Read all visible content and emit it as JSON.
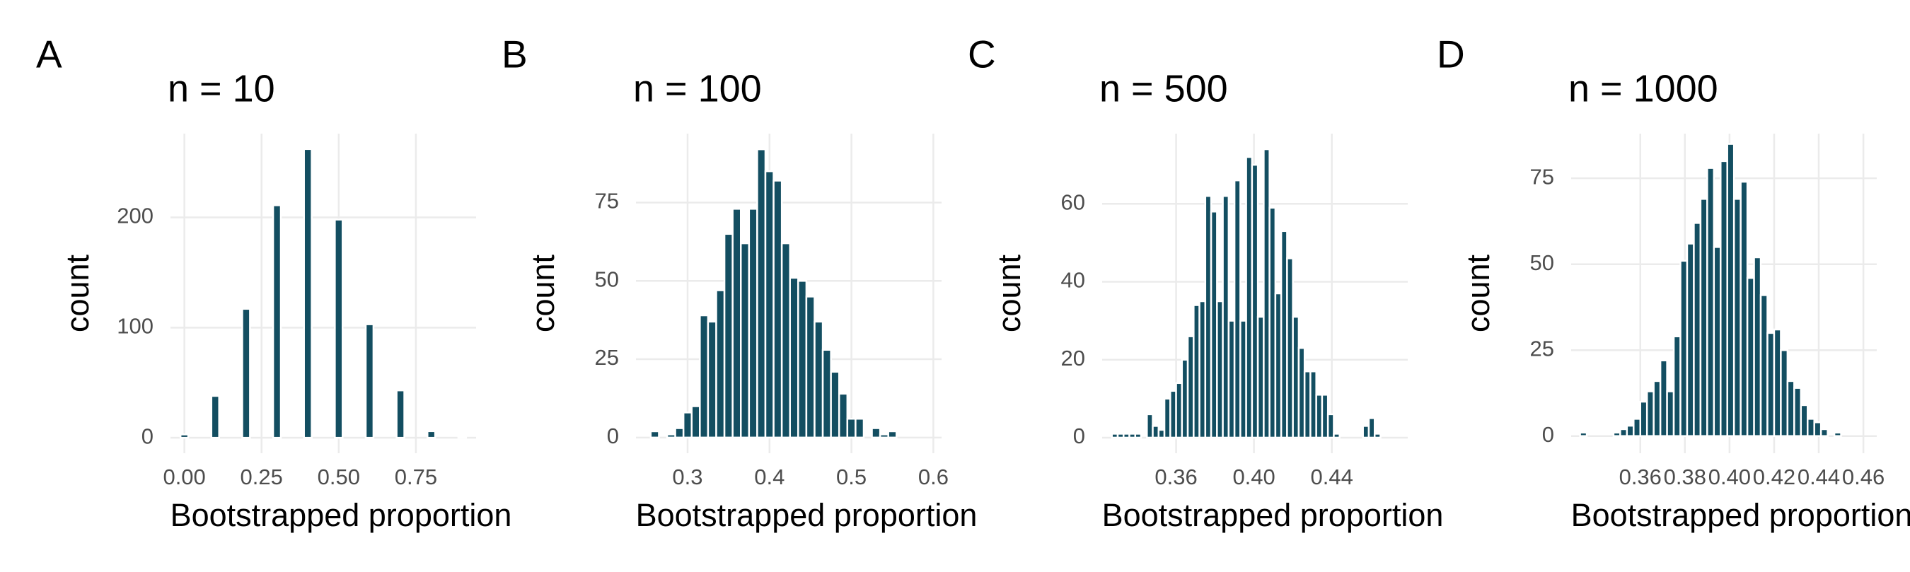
{
  "chart_data": [
    {
      "type": "histogram",
      "panel_label": "A",
      "title": "n = 10",
      "x_label": "Bootstrapped proportion",
      "y_label": "count",
      "color": "#134e61",
      "grid": true,
      "bins": [
        -0.0125,
        0.0125,
        0.0375,
        0.0625,
        0.0875,
        0.1125,
        0.1375,
        0.1625,
        0.1875,
        0.2125,
        0.2375,
        0.2625,
        0.2875,
        0.3125,
        0.3375,
        0.3625,
        0.3875,
        0.4125,
        0.4375,
        0.4625,
        0.4875,
        0.5125,
        0.5375,
        0.5625,
        0.5875,
        0.6125,
        0.6375,
        0.6625,
        0.6875,
        0.7125,
        0.7375,
        0.7625,
        0.7875,
        0.8125,
        0.8375,
        0.8625,
        0.8875,
        0.9125
      ],
      "counts": [
        3,
        0,
        0,
        0,
        38,
        0,
        0,
        0,
        117,
        0,
        0,
        0,
        211,
        0,
        0,
        0,
        262,
        0,
        0,
        0,
        198,
        0,
        0,
        0,
        103,
        0,
        0,
        0,
        43,
        0,
        0,
        0,
        6,
        0,
        0,
        0,
        1
      ],
      "xlim": [
        -0.045,
        0.945
      ],
      "ylim": [
        -14,
        276
      ],
      "xticks": [
        {
          "value": 0,
          "label": "0.00"
        },
        0.25,
        {
          "value": 0.5,
          "label": "0.50"
        },
        0.75
      ],
      "yticks": [
        0,
        100,
        200
      ]
    },
    {
      "type": "histogram",
      "panel_label": "B",
      "title": "n = 100",
      "x_label": "Bootstrapped proportion",
      "y_label": "count",
      "color": "#134e61",
      "grid": true,
      "bins": [
        0.255,
        0.265,
        0.275,
        0.285,
        0.295,
        0.305,
        0.315,
        0.325,
        0.335,
        0.345,
        0.355,
        0.365,
        0.375,
        0.385,
        0.395,
        0.405,
        0.415,
        0.425,
        0.435,
        0.445,
        0.455,
        0.465,
        0.475,
        0.485,
        0.495,
        0.505,
        0.515,
        0.525,
        0.535,
        0.545,
        0.555
      ],
      "counts": [
        2,
        0,
        1,
        3,
        8,
        10,
        39,
        37,
        47,
        65,
        73,
        62,
        73,
        92,
        85,
        82,
        62,
        51,
        50,
        45,
        37,
        28,
        21,
        14,
        6,
        6,
        0,
        3,
        1,
        2
      ],
      "xlim": [
        0.237,
        0.61
      ],
      "ylim": [
        -5,
        97
      ],
      "xticks": [
        0.3,
        0.4,
        0.5,
        0.6
      ],
      "yticks": [
        0,
        25,
        50,
        75
      ]
    },
    {
      "type": "histogram",
      "panel_label": "C",
      "title": "n = 500",
      "x_label": "Bootstrapped proportion",
      "y_label": "count",
      "color": "#134e61",
      "grid": true,
      "bins": [
        0.327,
        0.33,
        0.333,
        0.336,
        0.339,
        0.342,
        0.345,
        0.348,
        0.351,
        0.354,
        0.357,
        0.36,
        0.363,
        0.366,
        0.369,
        0.372,
        0.375,
        0.378,
        0.381,
        0.384,
        0.387,
        0.39,
        0.393,
        0.396,
        0.399,
        0.402,
        0.405,
        0.408,
        0.411,
        0.414,
        0.417,
        0.42,
        0.423,
        0.426,
        0.429,
        0.432,
        0.435,
        0.438,
        0.441,
        0.444,
        0.447,
        0.45,
        0.453,
        0.456,
        0.459,
        0.462,
        0.465
      ],
      "counts": [
        1,
        1,
        1,
        1,
        1,
        0,
        6,
        3,
        2,
        10,
        12,
        14,
        20,
        26,
        34,
        35,
        62,
        58,
        35,
        62,
        30,
        66,
        30,
        72,
        70,
        31,
        74,
        59,
        37,
        53,
        46,
        31,
        23,
        17,
        17,
        11,
        11,
        6,
        1,
        0,
        0,
        0,
        0,
        3,
        5,
        1
      ],
      "xlim": [
        0.322,
        0.479
      ],
      "ylim": [
        -4,
        78
      ],
      "xticks": [
        0.36,
        {
          "value": 0.4,
          "label": "0.40"
        },
        0.44
      ],
      "yticks": [
        0,
        20,
        40,
        60
      ]
    },
    {
      "type": "histogram",
      "panel_label": "D",
      "title": "n = 1000",
      "x_label": "Bootstrapped proportion",
      "y_label": "count",
      "color": "#134e61",
      "grid": true,
      "bins": [
        0.33,
        0.333,
        0.336,
        0.339,
        0.342,
        0.345,
        0.348,
        0.351,
        0.354,
        0.357,
        0.36,
        0.363,
        0.366,
        0.369,
        0.372,
        0.375,
        0.378,
        0.381,
        0.384,
        0.387,
        0.39,
        0.393,
        0.396,
        0.399,
        0.402,
        0.405,
        0.408,
        0.411,
        0.414,
        0.417,
        0.42,
        0.423,
        0.426,
        0.429,
        0.432,
        0.435,
        0.438,
        0.441,
        0.444,
        0.447,
        0.45,
        0.453,
        0.456,
        0.459,
        0.462,
        0.465
      ],
      "counts": [
        0,
        1,
        0,
        0,
        0,
        0,
        1,
        2,
        3,
        5,
        10,
        13,
        16,
        22,
        13,
        29,
        51,
        56,
        62,
        69,
        78,
        55,
        80,
        85,
        69,
        74,
        46,
        52,
        41,
        30,
        31,
        25,
        16,
        14,
        9,
        5,
        4,
        2,
        0,
        1,
        0,
        0,
        0,
        0,
        0
      ],
      "xlim": [
        0.329,
        0.466
      ],
      "ylim": [
        -5,
        88
      ],
      "xticks": [
        0.36,
        0.38,
        {
          "value": 0.4,
          "label": "0.40"
        },
        0.42,
        0.44,
        0.46
      ],
      "yticks": [
        0,
        25,
        50,
        75
      ]
    }
  ]
}
